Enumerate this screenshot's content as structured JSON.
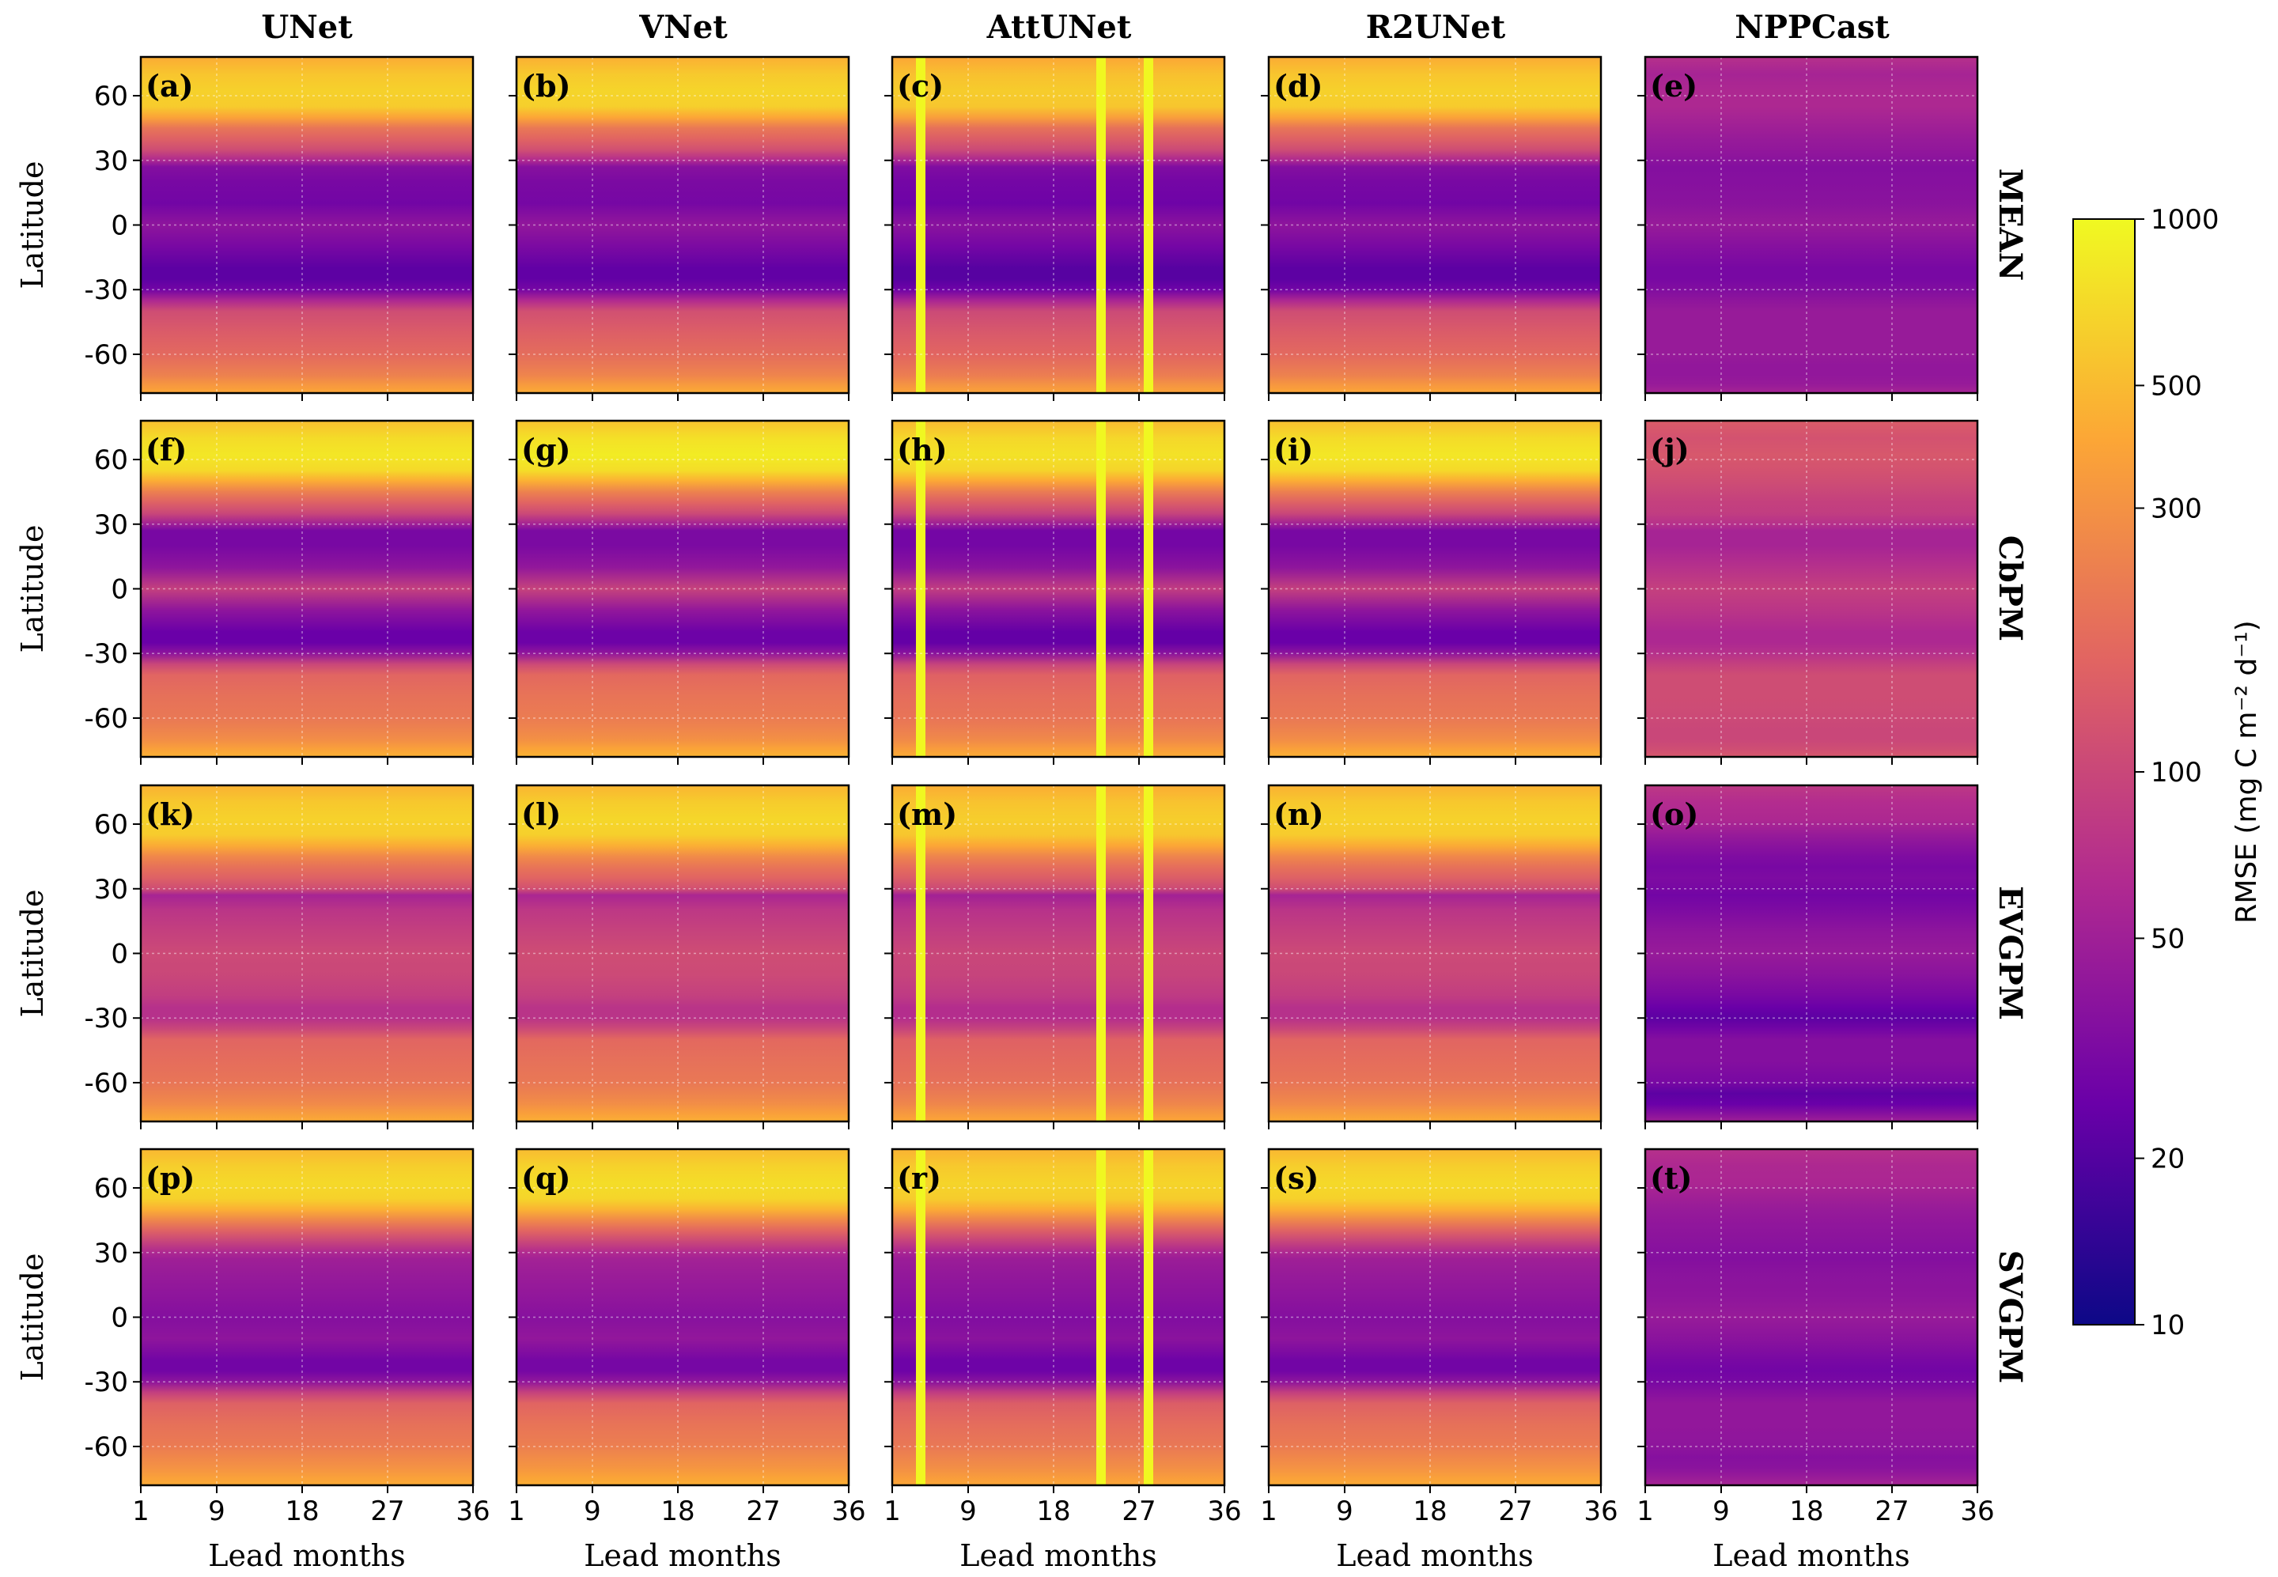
{
  "chart_data": {
    "type": "heatmap",
    "columns": [
      "UNet",
      "VNet",
      "AttUNet",
      "R2UNet",
      "NPPCast"
    ],
    "rows": [
      "MEAN",
      "CbPM",
      "EVGPM",
      "SVGPM"
    ],
    "panel_labels": [
      [
        "(a)",
        "(b)",
        "(c)",
        "(d)",
        "(e)"
      ],
      [
        "(f)",
        "(g)",
        "(h)",
        "(i)",
        "(j)"
      ],
      [
        "(k)",
        "(l)",
        "(m)",
        "(n)",
        "(o)"
      ],
      [
        "(p)",
        "(q)",
        "(r)",
        "(s)",
        "(t)"
      ]
    ],
    "xlabel": "Lead months",
    "ylabel": "Latitude",
    "xlim": [
      1,
      36
    ],
    "ylim": [
      -78,
      78
    ],
    "xticks": [
      1,
      9,
      18,
      27,
      36
    ],
    "xtick_labels": [
      "1",
      "9",
      "18",
      "27",
      "36"
    ],
    "yticks": [
      60,
      30,
      0,
      -30,
      -60
    ],
    "ytick_labels": [
      "60",
      "30",
      "0",
      "-30",
      "-60"
    ],
    "grid": true,
    "colorbar": {
      "label": "RMSE (mg C m⁻² d⁻¹)",
      "scale": "log",
      "range": [
        10,
        1000
      ],
      "ticks": [
        1000,
        500,
        300,
        100,
        50,
        20,
        10
      ],
      "tick_labels": [
        "1000",
        "500",
        "300",
        "100",
        "50",
        "20",
        "10"
      ],
      "colormap": [
        "#0d0887",
        "#6a00a8",
        "#b12a90",
        "#e16462",
        "#fca636",
        "#f0f921"
      ]
    },
    "latitude_profiles": {
      "lat_knots": [
        78,
        70,
        62,
        55,
        50,
        45,
        40,
        35,
        30,
        27,
        20,
        10,
        0,
        -10,
        -20,
        -25,
        -30,
        -35,
        -40,
        -50,
        -60,
        -65,
        -70,
        -74,
        -78
      ],
      "by_row": {
        "MEAN": [
          420,
          560,
          640,
          600,
          380,
          200,
          150,
          110,
          60,
          35,
          30,
          28,
          40,
          30,
          22,
          22,
          28,
          60,
          110,
          140,
          170,
          200,
          240,
          320,
          400
        ],
        "CbPM": [
          520,
          720,
          820,
          700,
          420,
          230,
          150,
          100,
          50,
          30,
          30,
          40,
          90,
          40,
          25,
          25,
          40,
          100,
          160,
          190,
          210,
          240,
          280,
          360,
          450
        ],
        "EVGPM": [
          450,
          580,
          650,
          600,
          420,
          260,
          190,
          150,
          110,
          55,
          75,
          90,
          105,
          100,
          85,
          70,
          70,
          100,
          160,
          180,
          200,
          230,
          270,
          340,
          420
        ],
        "SVGPM": [
          480,
          620,
          700,
          640,
          440,
          250,
          150,
          95,
          60,
          50,
          45,
          40,
          35,
          40,
          28,
          28,
          40,
          90,
          150,
          190,
          220,
          260,
          300,
          360,
          420
        ]
      },
      "model_factor": {
        "UNet": 1.0,
        "VNet": 1.05,
        "AttUNet": 0.95,
        "R2UNet": 1.0,
        "NPPCast": 0.6
      },
      "nppcast_by_row": {
        "MEAN": [
          70,
          55,
          60,
          60,
          55,
          50,
          45,
          42,
          38,
          35,
          36,
          38,
          45,
          36,
          30,
          30,
          34,
          40,
          45,
          45,
          45,
          42,
          42,
          45,
          55
        ],
        "CbPM": [
          140,
          120,
          130,
          120,
          110,
          100,
          90,
          85,
          70,
          55,
          55,
          70,
          90,
          75,
          60,
          60,
          70,
          90,
          110,
          110,
          105,
          100,
          100,
          110,
          130
        ],
        "EVGPM": [
          80,
          65,
          60,
          45,
          38,
          33,
          30,
          32,
          30,
          28,
          32,
          40,
          45,
          38,
          30,
          25,
          22,
          28,
          35,
          35,
          30,
          22,
          25,
          35,
          50
        ],
        "SVGPM": [
          70,
          60,
          58,
          50,
          45,
          42,
          40,
          38,
          36,
          35,
          38,
          40,
          45,
          38,
          30,
          28,
          30,
          36,
          42,
          42,
          40,
          36,
          38,
          45,
          55
        ]
      }
    },
    "attunet_high_error_lead_months": [
      4,
      23,
      28
    ]
  }
}
